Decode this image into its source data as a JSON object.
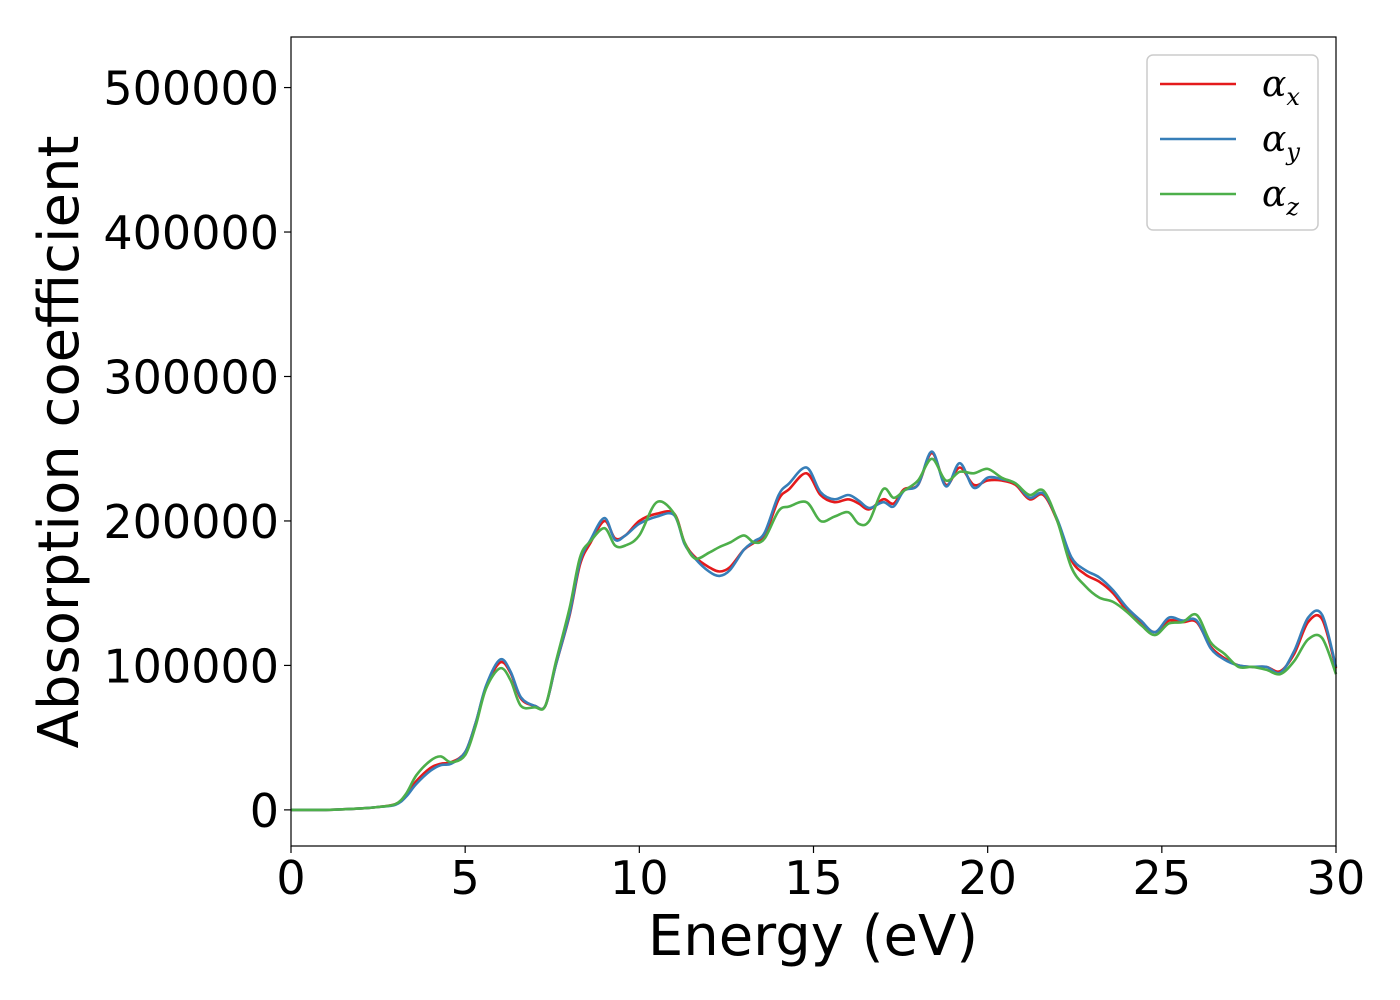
{
  "chart_data": {
    "type": "line",
    "title": "",
    "xlabel": "Energy (eV)",
    "ylabel": "Absorption coefficient",
    "xlim": [
      0,
      30
    ],
    "ylim": [
      -25000,
      535000
    ],
    "xticks": [
      0,
      5,
      10,
      15,
      20,
      25,
      30
    ],
    "yticks": [
      0,
      100000,
      200000,
      300000,
      400000,
      500000
    ],
    "grid": false,
    "legend_position": "top-right",
    "series": [
      {
        "name": "αx",
        "legend_base": "α",
        "legend_sub": "x",
        "color": "#e41a1c",
        "x": [
          0,
          1,
          2,
          2.5,
          3,
          3.3,
          3.6,
          4,
          4.3,
          4.6,
          5,
          5.3,
          5.6,
          6,
          6.3,
          6.6,
          7,
          7.3,
          7.6,
          8,
          8.3,
          8.6,
          9,
          9.3,
          9.6,
          10,
          10.5,
          11,
          11.3,
          11.6,
          12,
          12.3,
          12.6,
          13,
          13.3,
          13.6,
          14,
          14.3,
          14.8,
          15.2,
          15.6,
          16,
          16.3,
          16.6,
          17,
          17.3,
          17.6,
          18,
          18.4,
          18.8,
          19.2,
          19.6,
          20,
          20.4,
          20.8,
          21.2,
          21.6,
          22,
          22.4,
          22.8,
          23.2,
          23.6,
          24,
          24.4,
          24.8,
          25.2,
          25.6,
          26,
          26.4,
          26.8,
          27.2,
          27.6,
          28,
          28.4,
          28.8,
          29.2,
          29.6,
          30
        ],
        "values": [
          0,
          0,
          1000,
          2000,
          4000,
          10000,
          20000,
          29000,
          32000,
          33000,
          40000,
          60000,
          85000,
          102000,
          95000,
          77000,
          72000,
          72000,
          100000,
          135000,
          170000,
          185000,
          200000,
          188000,
          190000,
          200000,
          205000,
          205000,
          185000,
          175000,
          168000,
          165000,
          168000,
          180000,
          185000,
          190000,
          215000,
          222000,
          233000,
          218000,
          213000,
          215000,
          212000,
          208000,
          215000,
          212000,
          222000,
          225000,
          247000,
          225000,
          237000,
          225000,
          228000,
          228000,
          225000,
          215000,
          218000,
          200000,
          173000,
          163000,
          158000,
          150000,
          138000,
          130000,
          123000,
          131000,
          130000,
          130000,
          113000,
          105000,
          100000,
          99000,
          99000,
          96000,
          108000,
          130000,
          132000,
          98000
        ]
      },
      {
        "name": "αy",
        "legend_base": "α",
        "legend_sub": "y",
        "color": "#377eb8",
        "x": [
          0,
          1,
          2,
          2.5,
          3,
          3.3,
          3.6,
          4,
          4.3,
          4.6,
          5,
          5.3,
          5.6,
          6,
          6.3,
          6.6,
          7,
          7.3,
          7.6,
          8,
          8.3,
          8.6,
          9,
          9.3,
          9.6,
          10,
          10.5,
          11,
          11.3,
          11.6,
          12,
          12.3,
          12.6,
          13,
          13.3,
          13.6,
          14,
          14.3,
          14.8,
          15.2,
          15.6,
          16,
          16.3,
          16.6,
          17,
          17.3,
          17.6,
          18,
          18.4,
          18.8,
          19.2,
          19.6,
          20,
          20.4,
          20.8,
          21.2,
          21.6,
          22,
          22.4,
          22.8,
          23.2,
          23.6,
          24,
          24.4,
          24.8,
          25.2,
          25.6,
          26,
          26.4,
          26.8,
          27.2,
          27.6,
          28,
          28.4,
          28.8,
          29.2,
          29.6,
          30
        ],
        "values": [
          0,
          0,
          1000,
          2000,
          3500,
          9000,
          18000,
          27000,
          31000,
          32000,
          40000,
          60000,
          86000,
          104000,
          96000,
          78000,
          72000,
          72000,
          100000,
          136000,
          172000,
          187000,
          202000,
          187000,
          190000,
          198000,
          203000,
          204000,
          184000,
          174000,
          165000,
          162000,
          166000,
          180000,
          186000,
          192000,
          218000,
          226000,
          237000,
          220000,
          215000,
          218000,
          214000,
          209000,
          213000,
          210000,
          221000,
          225000,
          248000,
          224000,
          240000,
          223000,
          230000,
          229000,
          226000,
          216000,
          219000,
          201000,
          175000,
          166000,
          161000,
          152000,
          140000,
          131000,
          123000,
          133000,
          131000,
          131000,
          112000,
          104000,
          100000,
          99000,
          99000,
          95000,
          110000,
          133000,
          135000,
          99000
        ]
      },
      {
        "name": "αz",
        "legend_base": "α",
        "legend_sub": "z",
        "color": "#4daf4a",
        "x": [
          0,
          1,
          2,
          2.5,
          3,
          3.3,
          3.6,
          4,
          4.3,
          4.6,
          5,
          5.3,
          5.6,
          6,
          6.3,
          6.6,
          7,
          7.3,
          7.6,
          8,
          8.3,
          8.6,
          9,
          9.3,
          9.6,
          10,
          10.5,
          11,
          11.3,
          11.6,
          12,
          12.3,
          12.6,
          13,
          13.3,
          13.6,
          14,
          14.3,
          14.8,
          15.2,
          15.6,
          16,
          16.3,
          16.6,
          17,
          17.3,
          17.6,
          18,
          18.4,
          18.8,
          19.2,
          19.6,
          20,
          20.4,
          20.8,
          21.2,
          21.6,
          22,
          22.4,
          22.8,
          23.2,
          23.6,
          24,
          24.4,
          24.8,
          25.2,
          25.6,
          26,
          26.4,
          26.8,
          27.2,
          27.6,
          28,
          28.4,
          28.8,
          29.2,
          29.6,
          30
        ],
        "values": [
          0,
          0,
          1000,
          2000,
          4000,
          11000,
          24000,
          34000,
          37000,
          33000,
          38000,
          58000,
          84000,
          98000,
          90000,
          72000,
          71000,
          72000,
          102000,
          140000,
          175000,
          186000,
          195000,
          183000,
          183000,
          190000,
          213000,
          205000,
          185000,
          174000,
          178000,
          182000,
          185000,
          190000,
          185000,
          188000,
          207000,
          210000,
          213000,
          200000,
          203000,
          206000,
          198000,
          200000,
          222000,
          216000,
          221000,
          228000,
          243000,
          228000,
          234000,
          233000,
          236000,
          230000,
          226000,
          218000,
          221000,
          200000,
          168000,
          155000,
          147000,
          144000,
          137000,
          128000,
          121000,
          129000,
          130000,
          135000,
          116000,
          108000,
          99000,
          99000,
          97000,
          94000,
          103000,
          118000,
          119000,
          94000
        ]
      }
    ]
  }
}
